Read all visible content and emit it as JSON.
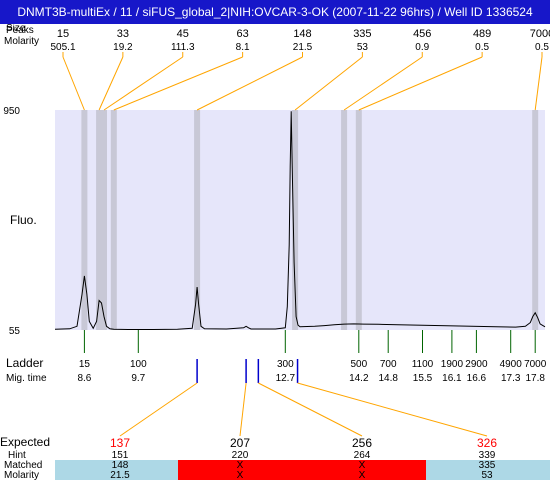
{
  "window": {
    "title": "DNMT3B-multiEx / 11  / siFUS_global_2|NIH:OVCAR-3-OK (2007-11-22 96hrs) / Well ID 1336524"
  },
  "colors": {
    "plot_bg": "#e6e6fa",
    "band": "#c8c8d6",
    "orange": "#ffa500",
    "ladder_tick": "#006400",
    "blue_tick": "#0000cd",
    "red": "#ff0000",
    "light_blue": "#add8e6"
  },
  "chart_data": {
    "type": "line",
    "row_labels": {
      "header": "Peaks",
      "size": "Size",
      "molarity": "Molarity",
      "fluo": "Fluo.",
      "ladder": "Ladder",
      "mig_time": "Mig. time",
      "expected": "Expected",
      "hint": "Hint",
      "matched": "Matched",
      "molarity_bottom": "Molarity"
    },
    "y_axis": {
      "min": 55,
      "max": 950,
      "tick_labels": [
        "950",
        "55"
      ]
    },
    "x_axis": {
      "min": 8.0,
      "max": 18.0
    },
    "peaks": [
      {
        "size": "15",
        "molarity": "505.1",
        "time": 8.6
      },
      {
        "size": "33",
        "molarity": "19.2",
        "time": 8.9
      },
      {
        "size": "45",
        "molarity": "111.3",
        "time": 9.0
      },
      {
        "size": "63",
        "molarity": "8.1",
        "time": 9.2
      },
      {
        "size": "148",
        "molarity": "21.5",
        "time": 10.9
      },
      {
        "size": "335",
        "molarity": "53",
        "time": 12.9
      },
      {
        "size": "456",
        "molarity": "0.9",
        "time": 13.9
      },
      {
        "size": "489",
        "molarity": "0.5",
        "time": 14.2
      },
      {
        "size": "7000",
        "molarity": "0.5",
        "time": 17.8
      }
    ],
    "ladder": [
      {
        "size": "15",
        "time": "8.6"
      },
      {
        "size": "100",
        "time": "9.7"
      },
      {
        "size": "300",
        "time": "12.7"
      },
      {
        "size": "500",
        "time": "14.2"
      },
      {
        "size": "700",
        "time": "14.8"
      },
      {
        "size": "1100",
        "time": "15.5"
      },
      {
        "size": "1900",
        "time": "16.1"
      },
      {
        "size": "2900",
        "time": "16.6"
      },
      {
        "size": "4900",
        "time": "17.3"
      },
      {
        "size": "7000",
        "time": "17.8"
      }
    ],
    "trace": [
      [
        8.0,
        58
      ],
      [
        8.3,
        60
      ],
      [
        8.45,
        70
      ],
      [
        8.55,
        200
      ],
      [
        8.6,
        275
      ],
      [
        8.65,
        200
      ],
      [
        8.7,
        90
      ],
      [
        8.78,
        62
      ],
      [
        8.85,
        90
      ],
      [
        8.9,
        175
      ],
      [
        8.95,
        165
      ],
      [
        9.0,
        110
      ],
      [
        9.05,
        70
      ],
      [
        9.12,
        60
      ],
      [
        9.2,
        58
      ],
      [
        9.5,
        57
      ],
      [
        10.0,
        57
      ],
      [
        10.5,
        58
      ],
      [
        10.8,
        62
      ],
      [
        10.87,
        160
      ],
      [
        10.9,
        230
      ],
      [
        10.93,
        160
      ],
      [
        10.98,
        70
      ],
      [
        11.05,
        60
      ],
      [
        11.5,
        59
      ],
      [
        11.85,
        64
      ],
      [
        11.9,
        70
      ],
      [
        11.95,
        64
      ],
      [
        12.0,
        59
      ],
      [
        12.5,
        59
      ],
      [
        12.7,
        64
      ],
      [
        12.74,
        150
      ],
      [
        12.78,
        400
      ],
      [
        12.8,
        720
      ],
      [
        12.82,
        945
      ],
      [
        12.84,
        720
      ],
      [
        12.88,
        330
      ],
      [
        12.92,
        110
      ],
      [
        12.96,
        75
      ],
      [
        13.0,
        68
      ],
      [
        13.3,
        70
      ],
      [
        13.5,
        73
      ],
      [
        13.7,
        76
      ],
      [
        13.9,
        79
      ],
      [
        14.1,
        80
      ],
      [
        14.3,
        79
      ],
      [
        14.6,
        78
      ],
      [
        15.0,
        76
      ],
      [
        15.5,
        74
      ],
      [
        16.0,
        72
      ],
      [
        16.5,
        70
      ],
      [
        17.0,
        68
      ],
      [
        17.4,
        67
      ],
      [
        17.6,
        70
      ],
      [
        17.7,
        85
      ],
      [
        17.75,
        110
      ],
      [
        17.8,
        125
      ],
      [
        17.85,
        105
      ],
      [
        17.9,
        80
      ],
      [
        18.0,
        68
      ]
    ],
    "expected": [
      {
        "expected": "137",
        "hint": "151",
        "matched": "148",
        "molarity": "21.5",
        "matched_flag": true,
        "expected_red": true,
        "tick_time": 10.9
      },
      {
        "expected": "207",
        "hint": "220",
        "matched": "X",
        "molarity": "X",
        "matched_flag": false,
        "expected_red": false,
        "tick_time": 11.9
      },
      {
        "expected": "256",
        "hint": "264",
        "matched": "X",
        "molarity": "X",
        "matched_flag": false,
        "expected_red": false,
        "tick_time": 12.15
      },
      {
        "expected": "326",
        "hint": "339",
        "matched": "335",
        "molarity": "53",
        "matched_flag": true,
        "expected_red": true,
        "tick_time": 12.95
      }
    ]
  }
}
